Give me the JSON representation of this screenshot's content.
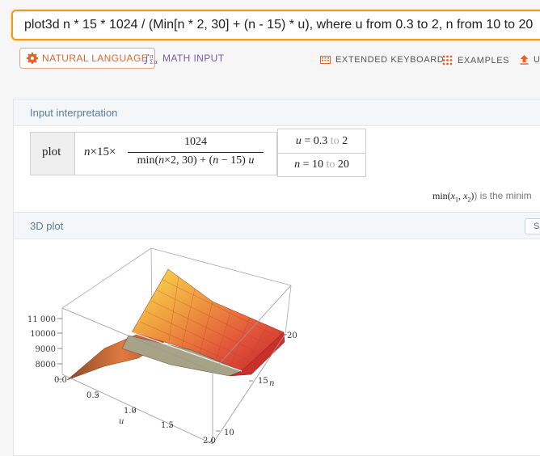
{
  "query": "plot3d n * 15 * 1024 / (Min[n * 2, 30] + (n - 15) * u), where u from 0.3 to 2, n from 10 to 20",
  "modes": {
    "natural_language": "NATURAL LANGUAGE",
    "math_input": "MATH INPUT"
  },
  "toolbar": {
    "extended_keyboard": "EXTENDED KEYBOARD",
    "examples": "EXAMPLES",
    "upload": "U"
  },
  "input_pod": {
    "title": "Input interpretation",
    "plot_label": "plot",
    "numerator": "1024",
    "ranges": [
      {
        "var": "u",
        "from": "0.3",
        "to_word": "to",
        "to": "2"
      },
      {
        "var": "n",
        "from": "10",
        "to_word": "to",
        "to": "20"
      }
    ],
    "footnote_prefix": "min(",
    "footnote_suffix": ") is the minim"
  },
  "plot_pod": {
    "title": "3D plot",
    "button": "Sh",
    "z_ticks": [
      "11 000",
      "10000",
      "9000",
      "8000"
    ],
    "u_ticks": [
      "0.0",
      "0.5",
      "1.0",
      "1.5",
      "2.0"
    ],
    "n_ticks": [
      "20",
      "15",
      "10"
    ],
    "u_label": "u",
    "n_label": "n"
  },
  "chart_data": {
    "type": "surface3d",
    "function": "n*15*1024/(min(2n,30)+(n-15)u)",
    "x": {
      "label": "u",
      "range": [
        0.3,
        2
      ],
      "ticks": [
        0.0,
        0.5,
        1.0,
        1.5,
        2.0
      ]
    },
    "y": {
      "label": "n",
      "range": [
        10,
        20
      ],
      "ticks": [
        10,
        15,
        20
      ]
    },
    "z": {
      "ticks": [
        8000,
        9000,
        10000,
        11000
      ]
    },
    "colors": {
      "high": "#f6d84a",
      "mid": "#e8773a",
      "low": "#c2262a",
      "flat": "#a8a386"
    }
  }
}
